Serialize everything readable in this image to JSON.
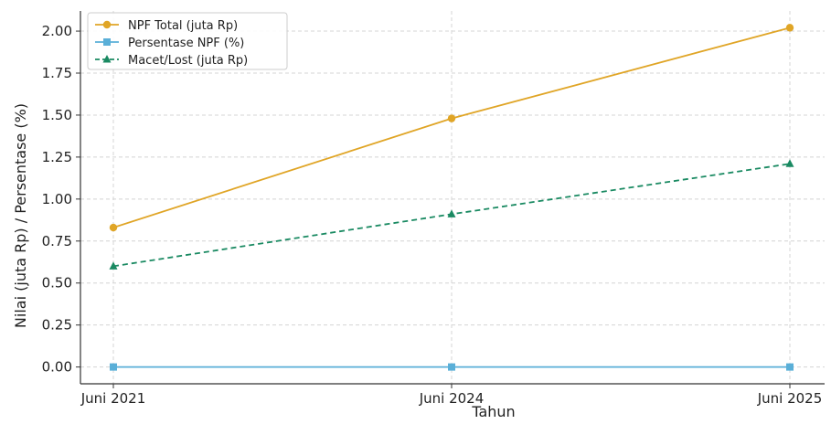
{
  "chart_data": {
    "type": "line",
    "title": "",
    "xlabel": "Tahun",
    "ylabel": "Nilai (juta Rp) / Persentase (%)",
    "categories": [
      "Juni 2021",
      "Juni 2024",
      "Juni 2025"
    ],
    "x_values": [
      2021,
      2024,
      2025
    ],
    "ylim": [
      -0.1,
      2.12
    ],
    "yticks": [
      0.0,
      0.25,
      0.5,
      0.75,
      1.0,
      1.25,
      1.5,
      1.75,
      2.0
    ],
    "ytick_labels": [
      "0.00",
      "0.25",
      "0.50",
      "0.75",
      "1.00",
      "1.25",
      "1.50",
      "1.75",
      "2.00"
    ],
    "grid": true,
    "legend_position": "top-left",
    "series": [
      {
        "name": "NPF Total (juta Rp)",
        "values": [
          0.83,
          1.48,
          2.02
        ],
        "color": "#e0a526",
        "marker": "circle",
        "linestyle": "solid"
      },
      {
        "name": "Persentase NPF (%)",
        "values": [
          0.0,
          0.0,
          0.0
        ],
        "color": "#5aafd8",
        "marker": "square",
        "linestyle": "solid"
      },
      {
        "name": "Macet/Lost (juta Rp)",
        "values": [
          0.6,
          0.91,
          1.21
        ],
        "color": "#1a8a62",
        "marker": "triangle",
        "linestyle": "dashed"
      }
    ]
  }
}
